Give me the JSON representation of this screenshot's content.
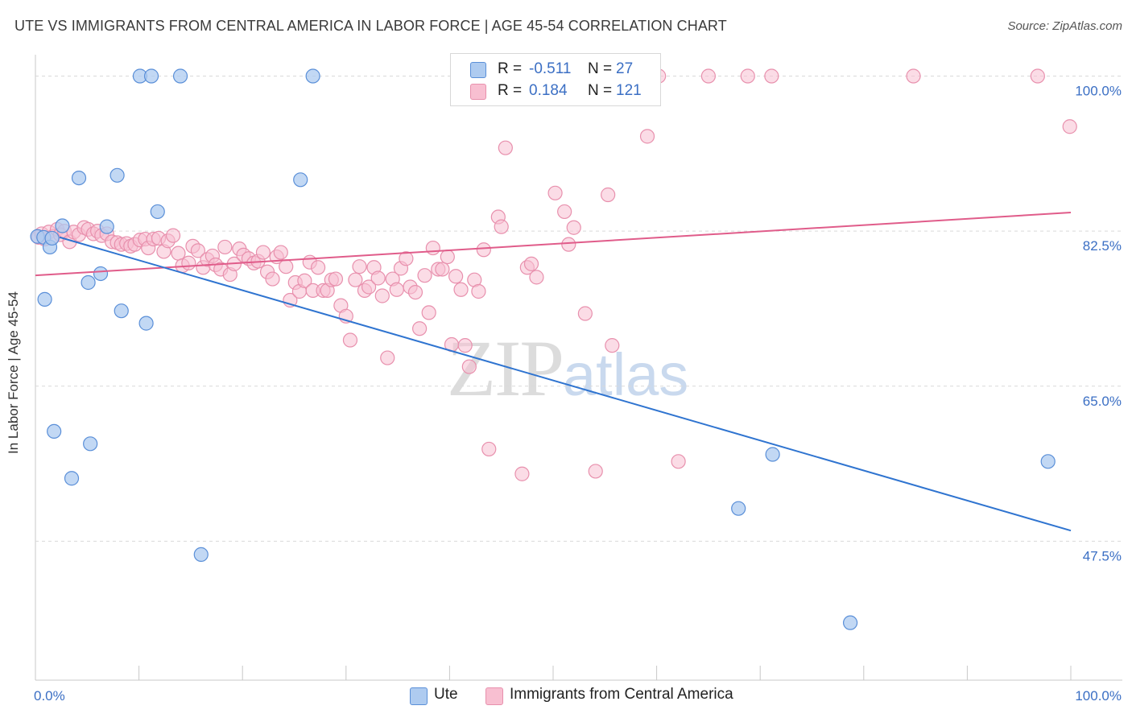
{
  "header": {
    "title": "UTE VS IMMIGRANTS FROM CENTRAL AMERICA IN LABOR FORCE | AGE 45-54 CORRELATION CHART",
    "source": "Source: ZipAtlas.com"
  },
  "watermark": {
    "zip": "ZIP",
    "atlas": "atlas"
  },
  "legend": {
    "rows": [
      {
        "r_label": "R =",
        "r_value": "-0.511",
        "n_label": "N =",
        "n_value": "27"
      },
      {
        "r_label": "R =",
        "r_value": "0.184",
        "n_label": "N =",
        "n_value": "121"
      }
    ]
  },
  "bottom_legend": {
    "items": [
      {
        "label": "Ute"
      },
      {
        "label": "Immigrants from Central America"
      }
    ]
  },
  "colors": {
    "ute_fill": "#aecbf0",
    "ute_stroke": "#5a8fd8",
    "ute_line": "#2f74d0",
    "ca_fill": "#f8bfd1",
    "ca_stroke": "#e890ad",
    "ca_line": "#e05c8a",
    "grid": "#d9d9d9",
    "tick_label": "#3b6fc4"
  },
  "chart_data": {
    "type": "scatter",
    "title": "UTE VS IMMIGRANTS FROM CENTRAL AMERICA IN LABOR FORCE | AGE 45-54 CORRELATION CHART",
    "xlabel": "",
    "ylabel": "In Labor Force | Age 45-54",
    "xlim": [
      0,
      100
    ],
    "ylim": [
      33.0,
      101.5
    ],
    "x_tick_labels": [
      "0.0%",
      "100.0%"
    ],
    "y_ticks": [
      47.5,
      65.0,
      82.5,
      100.0
    ],
    "y_tick_labels": [
      "47.5%",
      "65.0%",
      "82.5%",
      "100.0%"
    ],
    "grid": true,
    "legend_position": "top-center",
    "series": [
      {
        "name": "Ute",
        "r": -0.511,
        "n": 27,
        "trend": {
          "x": [
            0,
            100
          ],
          "y": [
            82.6,
            48.7
          ]
        },
        "points": [
          [
            0.2,
            81.9
          ],
          [
            0.8,
            81.8
          ],
          [
            1.4,
            80.7
          ],
          [
            0.9,
            74.8
          ],
          [
            2.6,
            83.1
          ],
          [
            10.1,
            100.0
          ],
          [
            11.2,
            100.0
          ],
          [
            14.0,
            100.0
          ],
          [
            26.8,
            100.0
          ],
          [
            4.2,
            88.5
          ],
          [
            7.9,
            88.8
          ],
          [
            25.6,
            88.3
          ],
          [
            11.8,
            84.7
          ],
          [
            6.9,
            83.0
          ],
          [
            6.3,
            77.7
          ],
          [
            5.1,
            76.7
          ],
          [
            8.3,
            73.5
          ],
          [
            10.7,
            72.1
          ],
          [
            1.8,
            59.9
          ],
          [
            5.3,
            58.5
          ],
          [
            3.5,
            54.6
          ],
          [
            16.0,
            46.0
          ],
          [
            71.2,
            57.3
          ],
          [
            97.8,
            56.5
          ],
          [
            67.9,
            51.2
          ],
          [
            78.7,
            38.3
          ],
          [
            1.6,
            81.7
          ]
        ]
      },
      {
        "name": "Immigrants from Central America",
        "r": 0.184,
        "n": 121,
        "trend": {
          "x": [
            0,
            100
          ],
          "y": [
            77.5,
            84.6
          ]
        },
        "points": [
          [
            0.3,
            81.8
          ],
          [
            0.6,
            82.2
          ],
          [
            0.9,
            81.6
          ],
          [
            1.3,
            82.4
          ],
          [
            1.7,
            81.9
          ],
          [
            2.1,
            82.7
          ],
          [
            2.4,
            82.1
          ],
          [
            2.8,
            82.5
          ],
          [
            3.3,
            81.3
          ],
          [
            3.7,
            82.4
          ],
          [
            4.2,
            82.1
          ],
          [
            4.7,
            82.9
          ],
          [
            5.1,
            82.7
          ],
          [
            5.6,
            82.2
          ],
          [
            6.0,
            82.5
          ],
          [
            6.4,
            82.0
          ],
          [
            6.9,
            82.2
          ],
          [
            7.4,
            81.3
          ],
          [
            7.9,
            81.2
          ],
          [
            8.3,
            81.0
          ],
          [
            8.8,
            81.1
          ],
          [
            9.2,
            80.8
          ],
          [
            9.6,
            81.0
          ],
          [
            10.1,
            81.5
          ],
          [
            10.6,
            81.6
          ],
          [
            10.9,
            80.6
          ],
          [
            11.4,
            81.6
          ],
          [
            11.9,
            81.7
          ],
          [
            12.4,
            80.2
          ],
          [
            12.8,
            81.4
          ],
          [
            13.3,
            82.0
          ],
          [
            13.8,
            80.0
          ],
          [
            14.2,
            78.6
          ],
          [
            14.8,
            78.9
          ],
          [
            15.2,
            80.8
          ],
          [
            15.7,
            80.3
          ],
          [
            16.2,
            78.4
          ],
          [
            16.6,
            79.3
          ],
          [
            17.1,
            79.7
          ],
          [
            17.4,
            78.7
          ],
          [
            17.9,
            78.2
          ],
          [
            18.3,
            80.7
          ],
          [
            18.8,
            77.6
          ],
          [
            19.2,
            78.8
          ],
          [
            19.7,
            80.5
          ],
          [
            20.1,
            79.8
          ],
          [
            20.6,
            79.4
          ],
          [
            21.1,
            78.9
          ],
          [
            21.5,
            79.1
          ],
          [
            22.0,
            80.1
          ],
          [
            22.4,
            77.9
          ],
          [
            22.9,
            77.1
          ],
          [
            23.3,
            79.6
          ],
          [
            23.7,
            80.1
          ],
          [
            24.2,
            78.5
          ],
          [
            24.6,
            74.7
          ],
          [
            25.1,
            76.7
          ],
          [
            25.5,
            75.7
          ],
          [
            26.0,
            76.9
          ],
          [
            26.5,
            79.0
          ],
          [
            26.8,
            75.8
          ],
          [
            27.3,
            78.4
          ],
          [
            27.8,
            75.8
          ],
          [
            28.2,
            75.8
          ],
          [
            28.6,
            77.0
          ],
          [
            29.0,
            77.1
          ],
          [
            29.5,
            74.1
          ],
          [
            30.0,
            72.9
          ],
          [
            30.4,
            70.2
          ],
          [
            30.9,
            77.0
          ],
          [
            31.3,
            78.5
          ],
          [
            31.8,
            75.8
          ],
          [
            32.2,
            76.2
          ],
          [
            32.7,
            78.4
          ],
          [
            33.1,
            77.2
          ],
          [
            33.5,
            75.2
          ],
          [
            34.0,
            68.2
          ],
          [
            34.5,
            77.1
          ],
          [
            34.9,
            75.9
          ],
          [
            35.3,
            78.3
          ],
          [
            35.8,
            79.4
          ],
          [
            36.2,
            76.2
          ],
          [
            36.7,
            75.6
          ],
          [
            37.1,
            71.5
          ],
          [
            37.6,
            77.5
          ],
          [
            38.0,
            73.3
          ],
          [
            38.4,
            80.6
          ],
          [
            38.9,
            78.2
          ],
          [
            39.3,
            78.2
          ],
          [
            39.8,
            79.6
          ],
          [
            40.2,
            69.7
          ],
          [
            40.6,
            77.4
          ],
          [
            41.1,
            75.9
          ],
          [
            41.5,
            69.6
          ],
          [
            41.9,
            67.2
          ],
          [
            42.4,
            77.0
          ],
          [
            42.8,
            75.7
          ],
          [
            43.3,
            80.4
          ],
          [
            44.7,
            84.1
          ],
          [
            45.0,
            83.0
          ],
          [
            45.4,
            91.9
          ],
          [
            47.5,
            78.4
          ],
          [
            47.9,
            78.8
          ],
          [
            48.4,
            77.3
          ],
          [
            50.2,
            86.8
          ],
          [
            51.1,
            84.7
          ],
          [
            51.5,
            81.0
          ],
          [
            52.0,
            82.9
          ],
          [
            53.1,
            73.2
          ],
          [
            55.3,
            86.6
          ],
          [
            55.7,
            69.6
          ],
          [
            59.1,
            93.2
          ],
          [
            60.2,
            100.0
          ],
          [
            62.1,
            56.5
          ],
          [
            65.0,
            100.0
          ],
          [
            68.8,
            100.0
          ],
          [
            71.1,
            100.0
          ],
          [
            84.8,
            100.0
          ],
          [
            96.8,
            100.0
          ],
          [
            99.9,
            94.3
          ],
          [
            47.0,
            55.1
          ],
          [
            54.1,
            55.4
          ],
          [
            43.8,
            57.9
          ]
        ]
      }
    ]
  }
}
